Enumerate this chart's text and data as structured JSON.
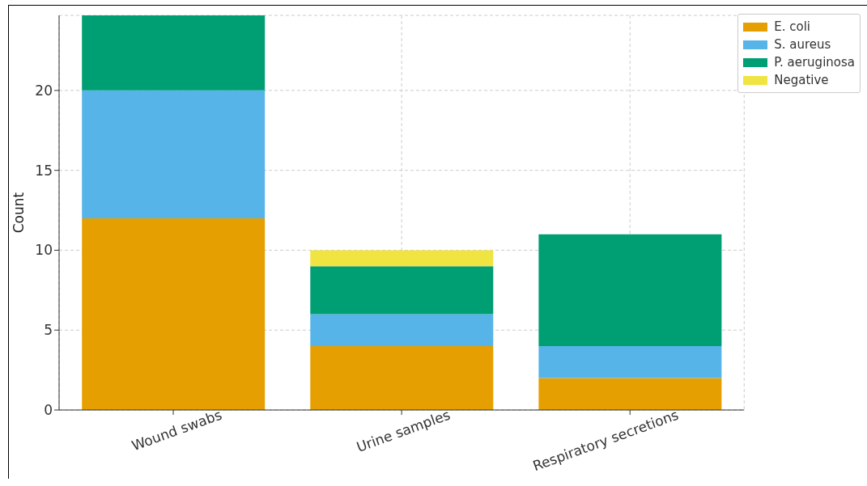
{
  "chart_data": {
    "type": "bar",
    "ylabel": "Count",
    "categories": [
      "Wound swabs",
      "Urine samples",
      "Respiratory secretions"
    ],
    "stacked": true,
    "series": [
      {
        "name": "E. coli",
        "color": "#e69f00",
        "values": [
          12,
          4,
          2
        ]
      },
      {
        "name": "S. aureus",
        "color": "#56b4e9",
        "values": [
          8,
          2,
          2
        ]
      },
      {
        "name": "P. aeruginosa",
        "color": "#009e73",
        "values": [
          4.7,
          3,
          7
        ]
      },
      {
        "name": "Negative",
        "color": "#f0e442",
        "values": [
          0,
          1,
          0
        ]
      }
    ],
    "ylim": [
      0,
      24.7
    ],
    "yticks": [
      0,
      5,
      10,
      15,
      20
    ],
    "grid": true,
    "legend": "top right"
  }
}
